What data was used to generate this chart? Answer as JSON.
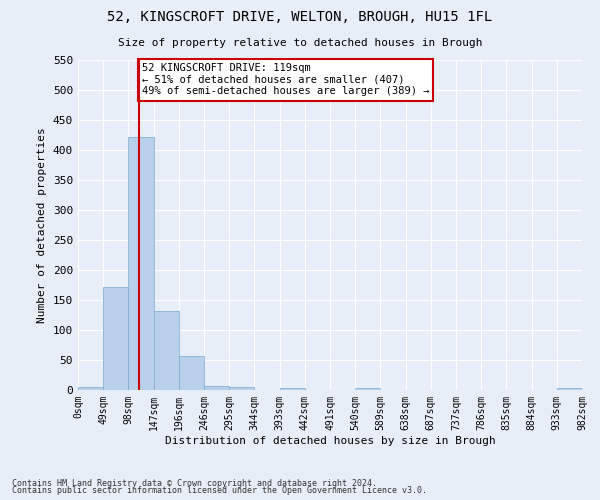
{
  "title_line1": "52, KINGSCROFT DRIVE, WELTON, BROUGH, HU15 1FL",
  "title_line2": "Size of property relative to detached houses in Brough",
  "xlabel": "Distribution of detached houses by size in Brough",
  "ylabel": "Number of detached properties",
  "bar_color": "#b8d0ea",
  "bar_edge_color": "#7aaad0",
  "bin_edges": [
    0,
    49,
    98,
    147,
    196,
    245,
    294,
    343,
    392,
    441,
    490,
    539,
    588,
    637,
    686,
    735,
    784,
    833,
    882,
    931,
    980
  ],
  "bar_heights": [
    5,
    172,
    422,
    132,
    57,
    7,
    5,
    0,
    3,
    0,
    0,
    3,
    0,
    0,
    0,
    0,
    0,
    0,
    0,
    3
  ],
  "tick_labels": [
    "0sqm",
    "49sqm",
    "98sqm",
    "147sqm",
    "196sqm",
    "246sqm",
    "295sqm",
    "344sqm",
    "393sqm",
    "442sqm",
    "491sqm",
    "540sqm",
    "589sqm",
    "638sqm",
    "687sqm",
    "737sqm",
    "786sqm",
    "835sqm",
    "884sqm",
    "933sqm",
    "982sqm"
  ],
  "vline_x": 119,
  "vline_color": "#cc0000",
  "annotation_text": "52 KINGSCROFT DRIVE: 119sqm\n← 51% of detached houses are smaller (407)\n49% of semi-detached houses are larger (389) →",
  "annotation_box_color": "#ffffff",
  "annotation_box_edge": "#cc0000",
  "ylim": [
    0,
    550
  ],
  "yticks": [
    0,
    50,
    100,
    150,
    200,
    250,
    300,
    350,
    400,
    450,
    500,
    550
  ],
  "footer_line1": "Contains HM Land Registry data © Crown copyright and database right 2024.",
  "footer_line2": "Contains public sector information licensed under the Open Government Licence v3.0.",
  "bg_color": "#e8eef8",
  "plot_bg_color": "#e8eef8",
  "title_fontsize": 10,
  "subtitle_fontsize": 8,
  "ylabel_fontsize": 8,
  "xlabel_fontsize": 8,
  "tick_fontsize": 7,
  "ytick_fontsize": 8,
  "annot_fontsize": 7.5,
  "footer_fontsize": 6
}
